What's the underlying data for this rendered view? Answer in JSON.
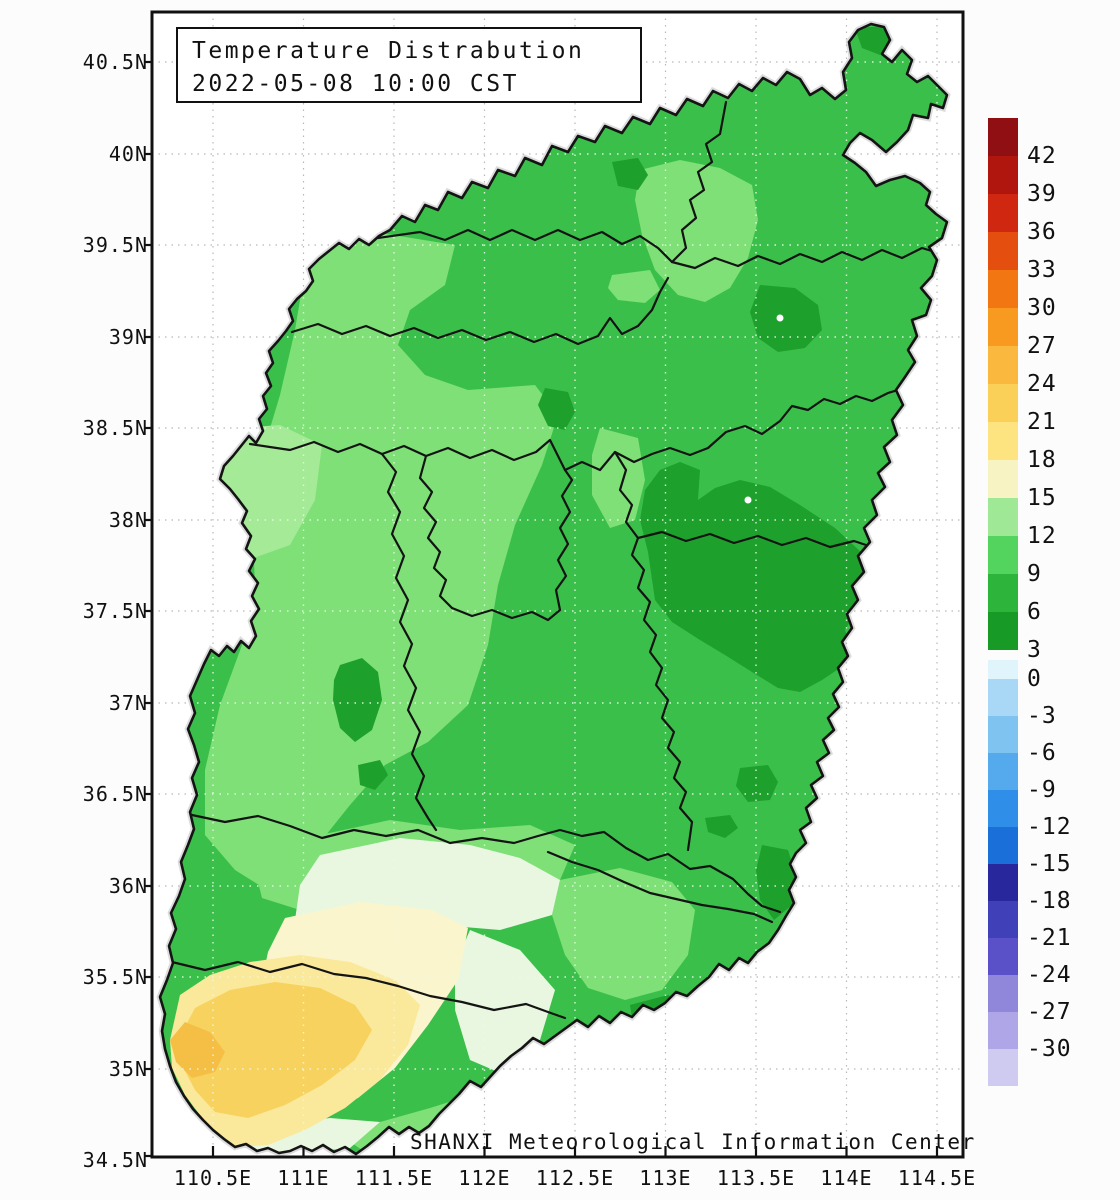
{
  "title": {
    "line1": "Temperature Distrabution",
    "line2": "2022-05-08 10:00 CST"
  },
  "watermark": "SHANXI Meteorological Information Center",
  "y_axis": {
    "labels": [
      "40.5N",
      "40N",
      "39.5N",
      "39N",
      "38.5N",
      "38N",
      "37.5N",
      "37N",
      "36.5N",
      "36N",
      "35.5N",
      "35N",
      "34.5N"
    ]
  },
  "x_axis": {
    "labels": [
      "110.5E",
      "111E",
      "111.5E",
      "112E",
      "112.5E",
      "113E",
      "113.5E",
      "114E",
      "114.5E"
    ]
  },
  "colorbar": {
    "warm_cells": [
      {
        "label": "42",
        "color": "#8f0f12"
      },
      {
        "label": "39",
        "color": "#b0150e"
      },
      {
        "label": "36",
        "color": "#d02810"
      },
      {
        "label": "33",
        "color": "#e44f10"
      },
      {
        "label": "30",
        "color": "#f27712"
      },
      {
        "label": "27",
        "color": "#f89a20"
      },
      {
        "label": "24",
        "color": "#fbb83e"
      },
      {
        "label": "21",
        "color": "#fbd058"
      },
      {
        "label": "18",
        "color": "#fde480"
      },
      {
        "label": "15",
        "color": "#f7f3c2"
      },
      {
        "label": "12",
        "color": "#9fe896"
      },
      {
        "label": "9",
        "color": "#52d45e"
      },
      {
        "label": "6",
        "color": "#2cb53a"
      },
      {
        "label": "3",
        "color": "#189a26"
      }
    ],
    "cold_cells": [
      {
        "label": "0",
        "color": "#e0f5fb"
      },
      {
        "label": "-3",
        "color": "#a8d8f6"
      },
      {
        "label": "-6",
        "color": "#7fc4f0"
      },
      {
        "label": "-9",
        "color": "#54aaec"
      },
      {
        "label": "-12",
        "color": "#2f8fe8"
      },
      {
        "label": "-15",
        "color": "#1b6fd8"
      },
      {
        "label": "-18",
        "color": "#28289c"
      },
      {
        "label": "-21",
        "color": "#4040b8"
      },
      {
        "label": "-24",
        "color": "#5a50c8"
      },
      {
        "label": "-27",
        "color": "#9087da"
      },
      {
        "label": "-30",
        "color": "#aea6e6"
      },
      {
        "label": "",
        "color": "#cfcaf0"
      }
    ]
  },
  "map": {
    "palette": {
      "plot_bg": "#ffffff",
      "frame": "#111111",
      "grid": "#b9b9b9",
      "grid_on_map": "#eafae6",
      "border": "#141414",
      "border_halo": "#bfbfbf",
      "main": "#3bbf4b",
      "light": "#7ee077",
      "pale_light": "#a5ea97",
      "mint": "#e9f7e0",
      "cream": "#fbf5cd",
      "pale_yellow": "#fae89b",
      "gold": "#f8d25f",
      "deep_gold": "#f5bf45",
      "dark": "#1da02c",
      "station_dot": "#ffffff"
    }
  }
}
